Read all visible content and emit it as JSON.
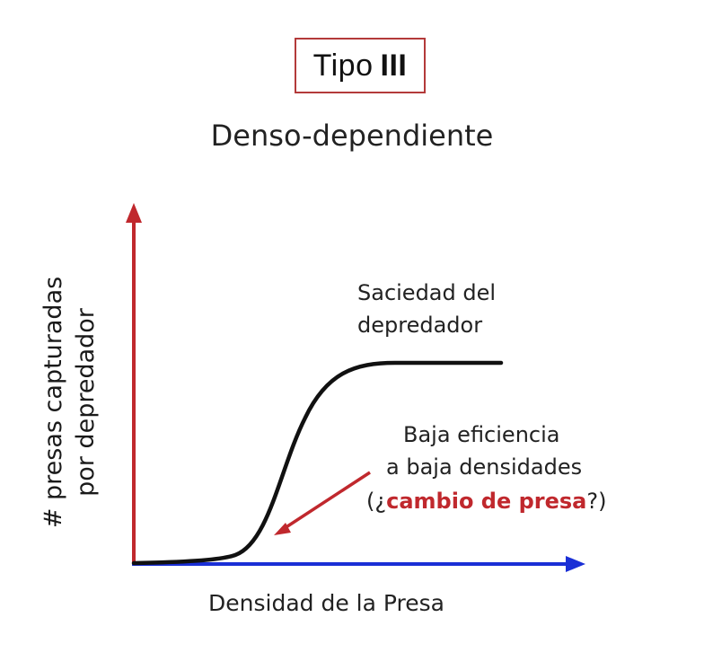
{
  "title": {
    "prefix": "Tipo",
    "roman": "III"
  },
  "subtitle": "Denso-dependiente",
  "axes": {
    "y_label_line1": "# presas capturadas",
    "y_label_line2": "por depredador",
    "x_label": "Densidad de la Presa",
    "y_axis_color": "#c0282d",
    "x_axis_color": "#1a2fd6"
  },
  "annotations": {
    "satiety_line1": "Saciedad del",
    "satiety_line2": "depredador",
    "efficiency_line1": "Baja eficiencia",
    "efficiency_line2": "a baja densidades",
    "efficiency_line3_open": "(¿",
    "efficiency_line3_highlight": "cambio de presa",
    "efficiency_line3_close": "?)",
    "arrow_color": "#c0282d"
  },
  "curve": {
    "shape": "sigmoid",
    "color": "#111111"
  }
}
